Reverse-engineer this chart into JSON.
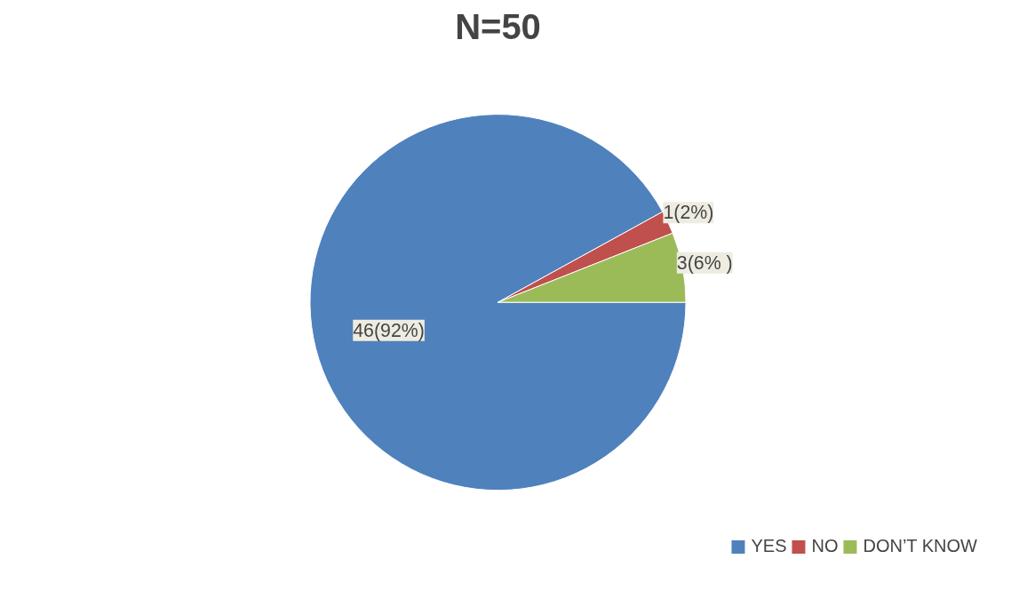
{
  "chart_data": {
    "type": "pie",
    "title": "N=50",
    "categories": [
      "YES",
      "NO",
      "DON’T KNOW"
    ],
    "values": [
      46,
      1,
      3
    ],
    "colors": [
      "#4f81bd",
      "#c0504d",
      "#9bbb59"
    ],
    "value_labels": [
      "46(92%)",
      "1(2%)",
      "3(6% )"
    ],
    "legend": "bottom right"
  }
}
